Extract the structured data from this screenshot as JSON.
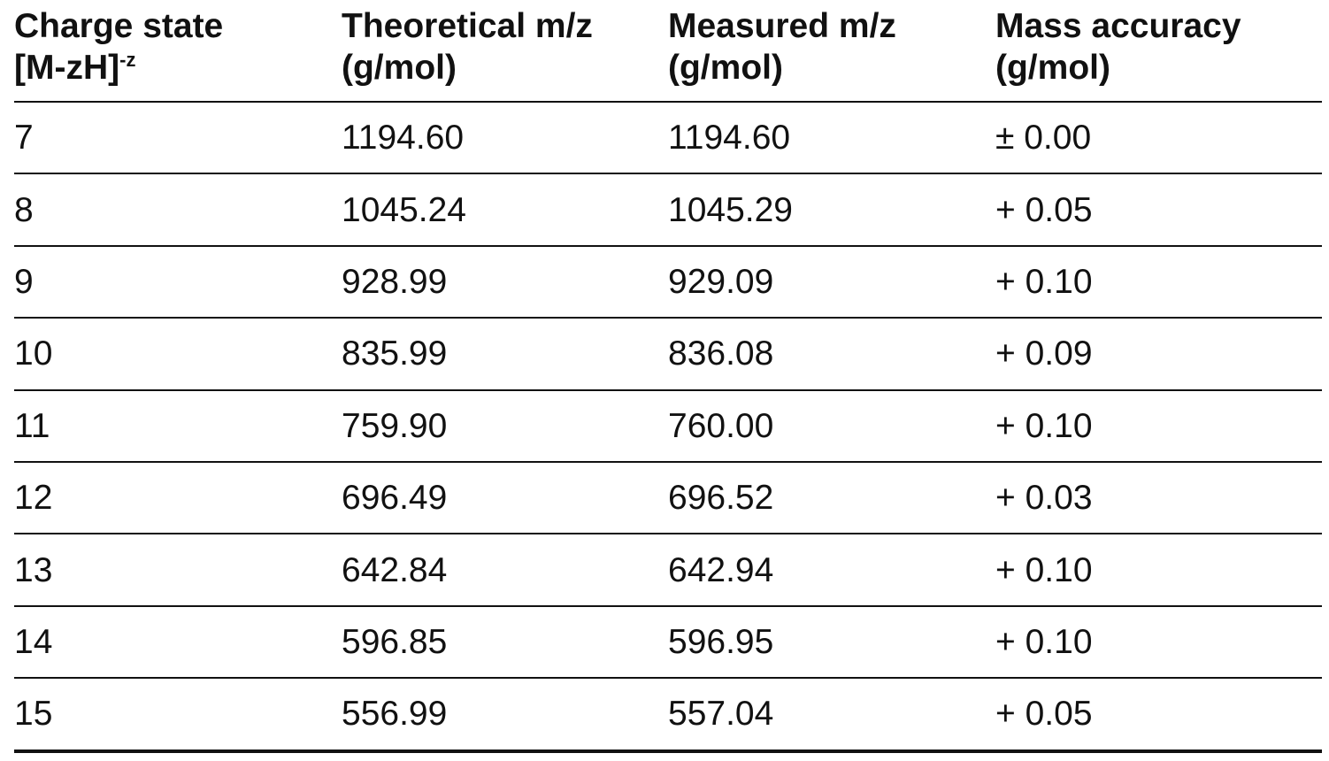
{
  "table": {
    "header": [
      {
        "lines": [
          "Charge state",
          "[M-zH]"
        ],
        "sup": "-z"
      },
      {
        "lines": [
          "Theoretical m/z",
          "(g/mol)"
        ]
      },
      {
        "lines": [
          "Measured m/z",
          "(g/mol)"
        ]
      },
      {
        "lines": [
          "Mass accuracy",
          "(g/mol)"
        ]
      }
    ],
    "rows": [
      [
        "7",
        "1194.60",
        "1194.60",
        "± 0.00"
      ],
      [
        "8",
        "1045.24",
        "1045.29",
        "+ 0.05"
      ],
      [
        "9",
        "928.99",
        "929.09",
        "+ 0.10"
      ],
      [
        "10",
        "835.99",
        "836.08",
        "+ 0.09"
      ],
      [
        "11",
        "759.90",
        "760.00",
        "+ 0.10"
      ],
      [
        "12",
        "696.49",
        "696.52",
        "+ 0.03"
      ],
      [
        "13",
        "642.84",
        "642.94",
        "+ 0.10"
      ],
      [
        "14",
        "596.85",
        "596.95",
        "+ 0.10"
      ],
      [
        "15",
        "556.99",
        "557.04",
        "+ 0.05"
      ]
    ]
  }
}
